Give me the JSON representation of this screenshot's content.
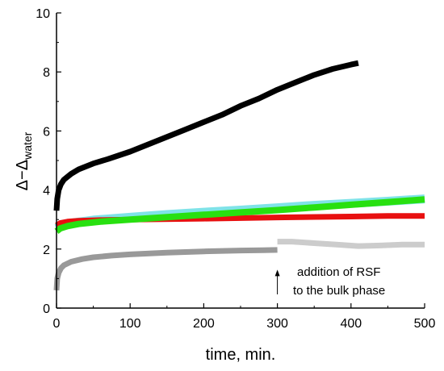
{
  "chart_data": {
    "type": "line",
    "xlabel": "time, min.",
    "ylabel": {
      "main": "Δ−Δ",
      "sub": "water"
    },
    "xlim": [
      0,
      500
    ],
    "ylim": [
      0,
      10
    ],
    "x_ticks": [
      0,
      100,
      200,
      300,
      400,
      500
    ],
    "y_ticks": [
      0,
      2,
      4,
      6,
      8,
      10
    ],
    "grid": false,
    "series": [
      {
        "color": "#000000",
        "points": [
          [
            0,
            3.3
          ],
          [
            1,
            3.7
          ],
          [
            3,
            4.0
          ],
          [
            6,
            4.2
          ],
          [
            10,
            4.35
          ],
          [
            20,
            4.55
          ],
          [
            30,
            4.7
          ],
          [
            50,
            4.9
          ],
          [
            70,
            5.05
          ],
          [
            100,
            5.3
          ],
          [
            125,
            5.55
          ],
          [
            150,
            5.8
          ],
          [
            175,
            6.05
          ],
          [
            200,
            6.3
          ],
          [
            225,
            6.55
          ],
          [
            250,
            6.85
          ],
          [
            275,
            7.1
          ],
          [
            300,
            7.4
          ],
          [
            325,
            7.65
          ],
          [
            350,
            7.9
          ],
          [
            375,
            8.1
          ],
          [
            400,
            8.25
          ],
          [
            410,
            8.3
          ]
        ]
      },
      {
        "color": "#7fe3e8",
        "points": [
          [
            0,
            2.7
          ],
          [
            10,
            2.82
          ],
          [
            25,
            2.9
          ],
          [
            50,
            2.98
          ],
          [
            100,
            3.08
          ],
          [
            150,
            3.17
          ],
          [
            200,
            3.25
          ],
          [
            250,
            3.32
          ],
          [
            300,
            3.4
          ],
          [
            350,
            3.48
          ],
          [
            400,
            3.55
          ],
          [
            450,
            3.62
          ],
          [
            500,
            3.7
          ]
        ]
      },
      {
        "color": "#e81010",
        "points": [
          [
            0,
            2.8
          ],
          [
            5,
            2.88
          ],
          [
            15,
            2.93
          ],
          [
            30,
            2.96
          ],
          [
            60,
            2.98
          ],
          [
            100,
            3.0
          ],
          [
            200,
            3.03
          ],
          [
            300,
            3.07
          ],
          [
            400,
            3.1
          ],
          [
            450,
            3.12
          ],
          [
            500,
            3.12
          ]
        ]
      },
      {
        "color": "#28e010",
        "points": [
          [
            0,
            2.6
          ],
          [
            5,
            2.7
          ],
          [
            15,
            2.78
          ],
          [
            30,
            2.85
          ],
          [
            60,
            2.93
          ],
          [
            100,
            3.0
          ],
          [
            150,
            3.08
          ],
          [
            200,
            3.16
          ],
          [
            250,
            3.24
          ],
          [
            300,
            3.32
          ],
          [
            350,
            3.41
          ],
          [
            400,
            3.5
          ],
          [
            450,
            3.59
          ],
          [
            500,
            3.68
          ]
        ]
      },
      {
        "color": "#999999",
        "points": [
          [
            0,
            0.6
          ],
          [
            1,
            1.0
          ],
          [
            3,
            1.2
          ],
          [
            6,
            1.35
          ],
          [
            10,
            1.45
          ],
          [
            20,
            1.57
          ],
          [
            35,
            1.66
          ],
          [
            50,
            1.72
          ],
          [
            75,
            1.78
          ],
          [
            100,
            1.82
          ],
          [
            150,
            1.88
          ],
          [
            200,
            1.92
          ],
          [
            250,
            1.95
          ],
          [
            280,
            1.96
          ],
          [
            300,
            1.97
          ]
        ]
      },
      {
        "color": "#cccccc",
        "points": [
          [
            300,
            2.25
          ],
          [
            320,
            2.25
          ],
          [
            350,
            2.2
          ],
          [
            380,
            2.15
          ],
          [
            410,
            2.1
          ],
          [
            440,
            2.12
          ],
          [
            470,
            2.15
          ],
          [
            500,
            2.15
          ]
        ]
      }
    ],
    "annotation": {
      "lines": [
        "addition of RSF",
        "to the bulk phase"
      ],
      "arrow_at": {
        "x": 300,
        "y": 1.3
      }
    }
  }
}
